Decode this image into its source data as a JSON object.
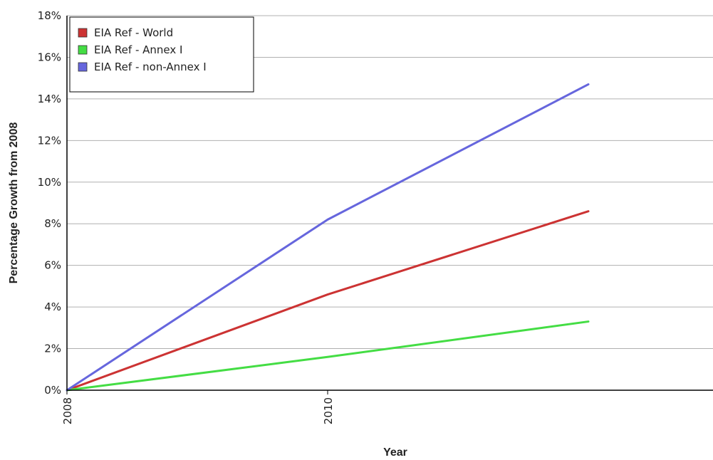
{
  "chart_data": {
    "type": "line",
    "xlabel": "Year",
    "ylabel": "Percentage Growth from 2008",
    "x_ticks": [
      "2008",
      "2010"
    ],
    "xlim": [
      2008,
      2013
    ],
    "ylim": [
      0,
      18
    ],
    "y_ticks": [
      "0%",
      "2%",
      "4%",
      "6%",
      "8%",
      "10%",
      "12%",
      "14%",
      "16%",
      "18%"
    ],
    "y_tick_values": [
      0,
      2,
      4,
      6,
      8,
      10,
      12,
      14,
      16,
      18
    ],
    "grid": "horizontal",
    "legend_position": "top-left",
    "series": [
      {
        "name": "EIA Ref - World",
        "color": "#cc3333",
        "x": [
          2008,
          2010,
          2012
        ],
        "values": [
          0,
          4.6,
          8.6
        ]
      },
      {
        "name": "EIA Ref - Annex I",
        "color": "#44dd44",
        "x": [
          2008,
          2010,
          2012
        ],
        "values": [
          0,
          1.6,
          3.3
        ]
      },
      {
        "name": "EIA Ref - non-Annex I",
        "color": "#6666dd",
        "x": [
          2008,
          2010,
          2012
        ],
        "values": [
          0,
          8.2,
          14.7
        ]
      }
    ]
  }
}
